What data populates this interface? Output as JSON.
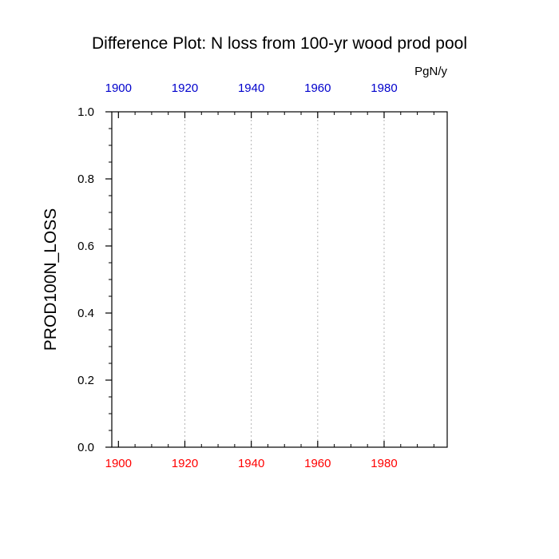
{
  "chart_data": {
    "type": "line",
    "title": "Difference Plot: N loss from 100-yr wood prod pool",
    "units": "PgN/y",
    "ylabel": "PROD100N_LOSS",
    "xlabel": "",
    "xlim": [
      1898,
      1999
    ],
    "ylim": [
      0.0,
      1.0
    ],
    "x_ticks": [
      1900,
      1920,
      1940,
      1960,
      1980
    ],
    "x_tick_labels": [
      "1900",
      "1920",
      "1940",
      "1960",
      "1980"
    ],
    "x_top_ticks": [
      1900,
      1920,
      1940,
      1960,
      1980
    ],
    "x_top_tick_labels": [
      "1900",
      "1920",
      "1940",
      "1960",
      "1980"
    ],
    "y_ticks": [
      0.0,
      0.2,
      0.4,
      0.6,
      0.8,
      1.0
    ],
    "y_tick_labels": [
      "0.0",
      "0.2",
      "0.4",
      "0.6",
      "0.8",
      "1.0"
    ],
    "x_gridlines": [
      1920,
      1940,
      1960,
      1980
    ],
    "grid": "vertical dotted",
    "series": [],
    "colors": {
      "bottom_axis_labels": "#ff0000",
      "top_axis_labels": "#0000cc",
      "axis": "#000000",
      "grid": "#b3b3b3"
    }
  }
}
